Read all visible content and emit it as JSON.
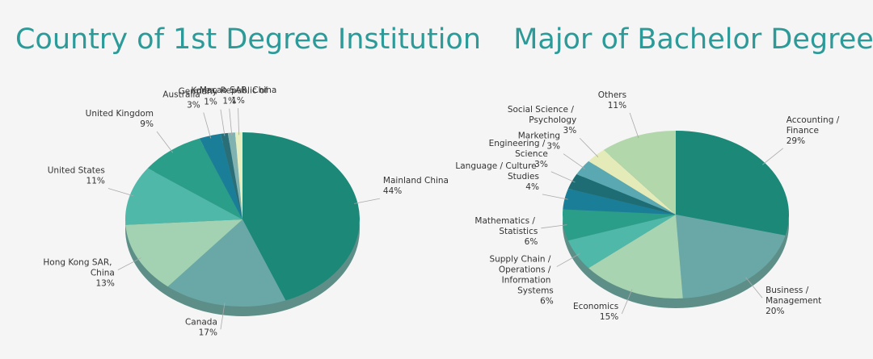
{
  "chart_data": [
    {
      "type": "pie",
      "title": "Country of 1st Degree Institution",
      "categories": [
        "Mainland China",
        "Canada",
        "Hong Kong SAR, China",
        "United States",
        "United Kingdom",
        "Australia",
        "Germany",
        "Korea, Republic of",
        "Macao SAR, China"
      ],
      "values": [
        44,
        17,
        13,
        11,
        9,
        3,
        1,
        1,
        1
      ],
      "value_labels": [
        "44%",
        "17%",
        "13%",
        "11%",
        "9%",
        "3%",
        "1%",
        "1%",
        "1%"
      ],
      "colors": [
        "#1b8878",
        "#6aa8a8",
        "#a2d2b2",
        "#4fb8a9",
        "#2a9e89",
        "#1b7e98",
        "#2a6f77",
        "#7fb2b0",
        "#e6eec2"
      ]
    },
    {
      "type": "pie",
      "title": "Major of Bachelor Degree",
      "categories": [
        "Accounting / Finance",
        "Business / Management",
        "Economics",
        "Supply Chain / Operations / Information Systems",
        "Mathematics / Statistics",
        "Language / Culture Studies",
        "Engineering / Science",
        "Marketing",
        "Social Science / Psychology",
        "Others"
      ],
      "values": [
        29,
        20,
        15,
        6,
        6,
        4,
        3,
        3,
        3,
        11
      ],
      "value_labels": [
        "29%",
        "20%",
        "15%",
        "6%",
        "6%",
        "4%",
        "3%",
        "3%",
        "3%",
        "11%"
      ],
      "colors": [
        "#1b8878",
        "#6aa8a8",
        "#a8d4b2",
        "#4fb8a9",
        "#2a9e89",
        "#1b7e98",
        "#1e6d74",
        "#5aa8b2",
        "#e4ebb8",
        "#b2d7aa"
      ]
    }
  ]
}
